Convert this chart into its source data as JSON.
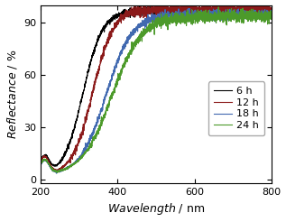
{
  "title": "",
  "xlabel": "Wavelength / nm",
  "ylabel": "Reflectance / %",
  "xlim": [
    200,
    800
  ],
  "ylim": [
    -2,
    100
  ],
  "series": [
    {
      "label": "6 h",
      "color": "#000000",
      "edge_nm": 310,
      "plateau": 96.5,
      "steepness": 0.04,
      "noise": 0.7,
      "low_val": 2.5,
      "bump_height": 10
    },
    {
      "label": "12 h",
      "color": "#8B1A1A",
      "edge_nm": 335,
      "plateau": 97.5,
      "steepness": 0.038,
      "noise": 1.1,
      "low_val": 2.5,
      "bump_height": 10
    },
    {
      "label": "18 h",
      "color": "#4169B0",
      "edge_nm": 370,
      "plateau": 94.5,
      "steepness": 0.03,
      "noise": 0.9,
      "low_val": 2.5,
      "bump_height": 8
    },
    {
      "label": "24 h",
      "color": "#4C9A2A",
      "edge_nm": 385,
      "plateau": 93.5,
      "steepness": 0.026,
      "noise": 1.1,
      "low_val": 2.5,
      "bump_height": 8
    }
  ],
  "tick_fontsize": 8,
  "label_fontsize": 9,
  "legend_fontsize": 8,
  "linewidth": 0.8,
  "xticks": [
    200,
    400,
    600,
    800
  ],
  "yticks": [
    0,
    30,
    60,
    90
  ]
}
